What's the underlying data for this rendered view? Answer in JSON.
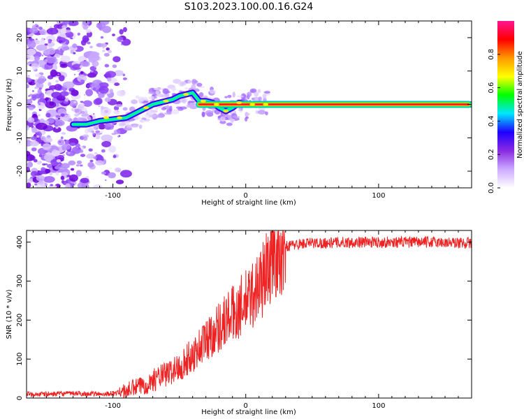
{
  "page_title": "S103.2023.100.00.16.G24",
  "chart_data": [
    {
      "type": "heatmap",
      "xlabel": "Height of straight line (km)",
      "ylabel": "Frequency (Hz)",
      "xlim": [
        -165,
        170
      ],
      "ylim": [
        -25,
        25
      ],
      "x_ticks": [
        -100,
        0,
        100
      ],
      "y_ticks": [
        -20,
        -10,
        0,
        10,
        20
      ],
      "colorbar": {
        "label": "Normalized spectral amplitude",
        "range": [
          0,
          1
        ],
        "ticks": [
          "0.0",
          "0.2",
          "0.4",
          "0.6",
          "0.8"
        ],
        "colors": [
          "#ffffff",
          "#ccaaff",
          "#8a2be2",
          "#1e00ff",
          "#00e5ff",
          "#00ff00",
          "#ffff00",
          "#ff9900",
          "#ff0000",
          "#ff1493"
        ]
      },
      "ridge": {
        "x": [
          -130,
          -120,
          -110,
          -100,
          -90,
          -85,
          -80,
          -75,
          -70,
          -65,
          -60,
          -55,
          -50,
          -45,
          -40,
          -35,
          -30,
          -25,
          -20,
          -15,
          -10,
          -5,
          0,
          5,
          10,
          15,
          170
        ],
        "y": [
          -6,
          -6,
          -5,
          -4.5,
          -4,
          -3,
          -2,
          -1,
          0,
          0.5,
          1,
          1.5,
          2.5,
          3,
          3.5,
          1,
          1,
          0.5,
          -1,
          -2,
          -1,
          0.5,
          0,
          0,
          0,
          0,
          0
        ]
      }
    },
    {
      "type": "line",
      "xlabel": "Height of straight line (km)",
      "ylabel": "SNR (10 * v/v)",
      "xlim": [
        -165,
        170
      ],
      "ylim": [
        0,
        430
      ],
      "x_ticks": [
        -100,
        0,
        100
      ],
      "y_ticks": [
        0,
        100,
        200,
        300,
        400
      ],
      "series": [
        {
          "color": "#ee2222",
          "x": [
            -165,
            -150,
            -130,
            -110,
            -100,
            -95,
            -90,
            -85,
            -80,
            -75,
            -70,
            -65,
            -60,
            -55,
            -50,
            -45,
            -40,
            -35,
            -30,
            -25,
            -20,
            -15,
            -10,
            -5,
            0,
            5,
            10,
            15,
            20,
            25,
            30,
            40,
            50,
            60,
            80,
            100,
            120,
            140,
            160,
            170
          ],
          "y": [
            10,
            10,
            12,
            10,
            12,
            15,
            18,
            25,
            30,
            35,
            45,
            55,
            60,
            70,
            80,
            95,
            110,
            130,
            150,
            165,
            185,
            200,
            215,
            230,
            245,
            265,
            290,
            320,
            360,
            380,
            390,
            395,
            398,
            398,
            400,
            400,
            400,
            400,
            398,
            398
          ]
        }
      ]
    }
  ]
}
